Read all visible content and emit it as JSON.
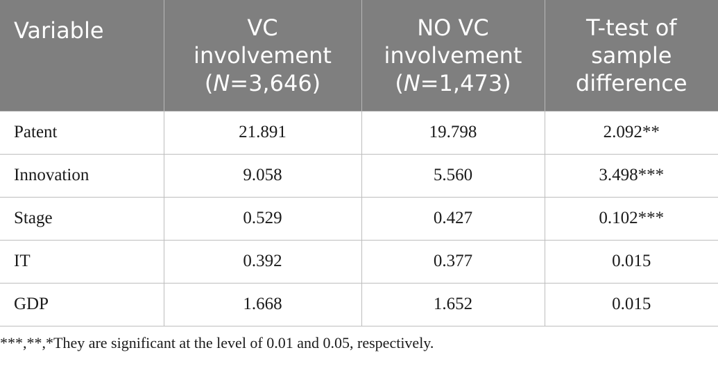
{
  "table": {
    "headers": [
      {
        "lines": [
          "Variable"
        ]
      },
      {
        "lines": [
          "VC",
          "involvement"
        ],
        "n_prefix": "(",
        "n_italic": "N",
        "n_suffix": "=3,646)"
      },
      {
        "lines": [
          "NO VC",
          "involvement"
        ],
        "n_prefix": "(",
        "n_italic": "N",
        "n_suffix": "=1,473)"
      },
      {
        "lines": [
          "T-test of",
          "sample",
          "difference"
        ]
      }
    ],
    "rows": [
      [
        "Patent",
        "21.891",
        "19.798",
        "2.092**"
      ],
      [
        "Innovation",
        "9.058",
        "5.560",
        "3.498***"
      ],
      [
        "Stage",
        "0.529",
        "0.427",
        "0.102***"
      ],
      [
        "IT",
        "0.392",
        "0.377",
        "0.015"
      ],
      [
        "GDP",
        "1.668",
        "1.652",
        "0.015"
      ]
    ]
  },
  "footnote": "***,**,*They are significant at the level of 0.01 and 0.05, respectively."
}
